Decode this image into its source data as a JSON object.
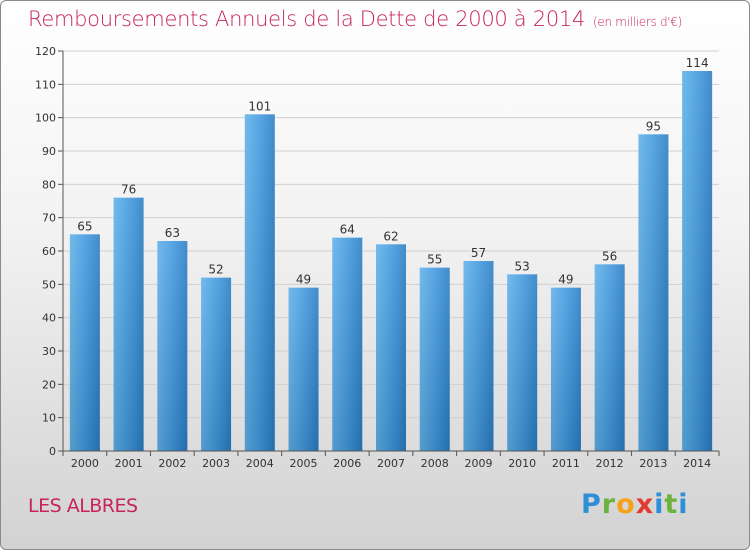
{
  "chart_data": {
    "type": "bar",
    "title": "Remboursements Annuels de la Dette de 2000 à 2014",
    "unit_note": "(en milliers d'€)",
    "categories": [
      "2000",
      "2001",
      "2002",
      "2003",
      "2004",
      "2005",
      "2006",
      "2007",
      "2008",
      "2009",
      "2010",
      "2011",
      "2012",
      "2013",
      "2014"
    ],
    "values": [
      65,
      76,
      63,
      52,
      101,
      49,
      64,
      62,
      55,
      57,
      53,
      49,
      56,
      95,
      114
    ],
    "ylim": [
      0,
      120
    ],
    "yticks": [
      0,
      10,
      20,
      30,
      40,
      50,
      60,
      70,
      80,
      90,
      100,
      110,
      120
    ],
    "xlabel": "",
    "ylabel": "",
    "grid": true,
    "bar_color": "#3a8fd6"
  },
  "footer": {
    "place": "LES ALBRES",
    "logo_letters": [
      "P",
      "r",
      "o",
      "x",
      "i",
      "t",
      "i"
    ]
  },
  "colors": {
    "title": "#c8245a",
    "grid": "#d0d0d0",
    "axis_text": "#333333"
  }
}
